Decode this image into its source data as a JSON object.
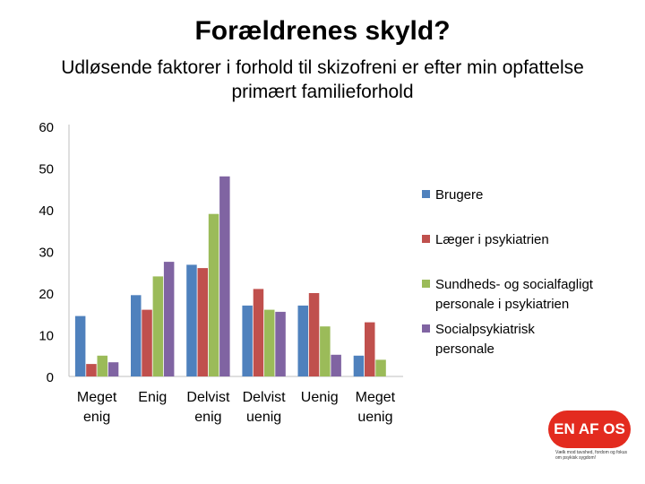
{
  "slide": {
    "title": "Forældrenes skyld?",
    "subtitle_line1": "Udløsende faktorer i forhold til skizofreni er efter min opfattelse",
    "subtitle_line2": "primært familieforhold"
  },
  "logo": {
    "text": "EN AF OS",
    "tagline": "Vælk mod tavshed, fordom og fokus om psykisk sygdom!",
    "color": "#e32b1f"
  },
  "chart_data": {
    "type": "bar",
    "title": "",
    "xlabel": "",
    "ylabel": "",
    "ylim": [
      0,
      60
    ],
    "yticks": [
      0,
      10,
      20,
      30,
      40,
      50,
      60
    ],
    "grid": false,
    "legend_position": "right",
    "categories": [
      [
        "Meget",
        "enig"
      ],
      [
        "Enig"
      ],
      [
        "Delvist",
        "enig"
      ],
      [
        "Delvist",
        "uenig"
      ],
      [
        "Uenig"
      ],
      [
        "Meget",
        "uenig"
      ]
    ],
    "series": [
      {
        "name": [
          "Brugere"
        ],
        "color": "#4f81bd",
        "values": [
          14.5,
          19.5,
          26.8,
          17,
          17,
          5
        ]
      },
      {
        "name": [
          "Læger i psykiatrien"
        ],
        "color": "#c0504d",
        "values": [
          3,
          16,
          26,
          21,
          20,
          13
        ]
      },
      {
        "name": [
          "Sundheds- og socialfagligt",
          "personale i psykiatrien"
        ],
        "color": "#9bbb59",
        "values": [
          5,
          24,
          39,
          16,
          12,
          4
        ]
      },
      {
        "name": [
          "Socialpsykiatrisk",
          "personale"
        ],
        "color": "#8064a2",
        "values": [
          3.4,
          27.5,
          48,
          15.5,
          5.2,
          0
        ]
      }
    ]
  }
}
